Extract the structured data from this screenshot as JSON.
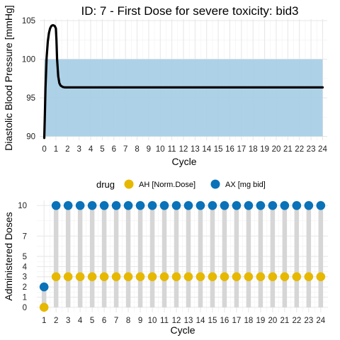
{
  "colors": {
    "band": "#a9cfe6",
    "curve": "#000000",
    "grid_major": "#e6e6e6",
    "grid_minor": "#f2f2f2",
    "stem": "#d6d6d6",
    "ah": "#e6b800",
    "ax": "#0a72b8"
  },
  "chart_data": [
    {
      "type": "line",
      "title": "ID: 7 -  First Dose for severe toxicity: bid3",
      "xlabel": "Cycle",
      "ylabel": "Diastolic Blood Pressure [mmHg]",
      "xlim": [
        -0.4,
        24.4
      ],
      "ylim": [
        89.5,
        105.2
      ],
      "xticks": [
        0,
        1,
        2,
        3,
        4,
        5,
        6,
        7,
        8,
        9,
        10,
        11,
        12,
        13,
        14,
        15,
        16,
        17,
        18,
        19,
        20,
        21,
        22,
        23,
        24
      ],
      "yticks": [
        90,
        95,
        100,
        105
      ],
      "band": {
        "y_min": 90,
        "y_max": 100,
        "x_min": 0,
        "x_max": 24
      },
      "series": [
        {
          "x": [
            0,
            0.05,
            0.1,
            0.2,
            0.3,
            0.4,
            0.5,
            0.6,
            0.7,
            0.8,
            0.9,
            1.0,
            1.05,
            1.1,
            1.2,
            1.3,
            1.4,
            1.5,
            1.6,
            1.8,
            2.0,
            2.5,
            3,
            24
          ],
          "y": [
            89.8,
            93.0,
            96.2,
            100.2,
            102.3,
            103.4,
            104.0,
            104.3,
            104.4,
            104.4,
            104.3,
            104.0,
            102.5,
            100.0,
            97.8,
            96.9,
            96.6,
            96.5,
            96.4,
            96.35,
            96.35,
            96.35,
            96.35,
            96.35
          ]
        }
      ]
    },
    {
      "type": "scatter",
      "title": "",
      "xlabel": "Cycle",
      "ylabel": "Administered Doses",
      "legend": {
        "title": "drug",
        "position": "top",
        "entries": [
          "AH [Norm.Dose]",
          "AX [mg bid]"
        ]
      },
      "xlim": [
        0.4,
        24.6
      ],
      "ylim": [
        -0.5,
        10.5
      ],
      "xticks": [
        1,
        2,
        3,
        4,
        5,
        6,
        7,
        8,
        9,
        10,
        11,
        12,
        13,
        14,
        15,
        16,
        17,
        18,
        19,
        20,
        21,
        22,
        23,
        24
      ],
      "yticks": [
        0,
        1,
        2,
        3,
        4,
        5,
        7,
        10
      ],
      "x": [
        1,
        2,
        3,
        4,
        5,
        6,
        7,
        8,
        9,
        10,
        11,
        12,
        13,
        14,
        15,
        16,
        17,
        18,
        19,
        20,
        21,
        22,
        23,
        24
      ],
      "series": [
        {
          "name": "AH [Norm.Dose]",
          "values": [
            0,
            3,
            3,
            3,
            3,
            3,
            3,
            3,
            3,
            3,
            3,
            3,
            3,
            3,
            3,
            3,
            3,
            3,
            3,
            3,
            3,
            3,
            3,
            3
          ]
        },
        {
          "name": "AX [mg bid]",
          "values": [
            2,
            10,
            10,
            10,
            10,
            10,
            10,
            10,
            10,
            10,
            10,
            10,
            10,
            10,
            10,
            10,
            10,
            10,
            10,
            10,
            10,
            10,
            10,
            10
          ]
        }
      ]
    }
  ]
}
